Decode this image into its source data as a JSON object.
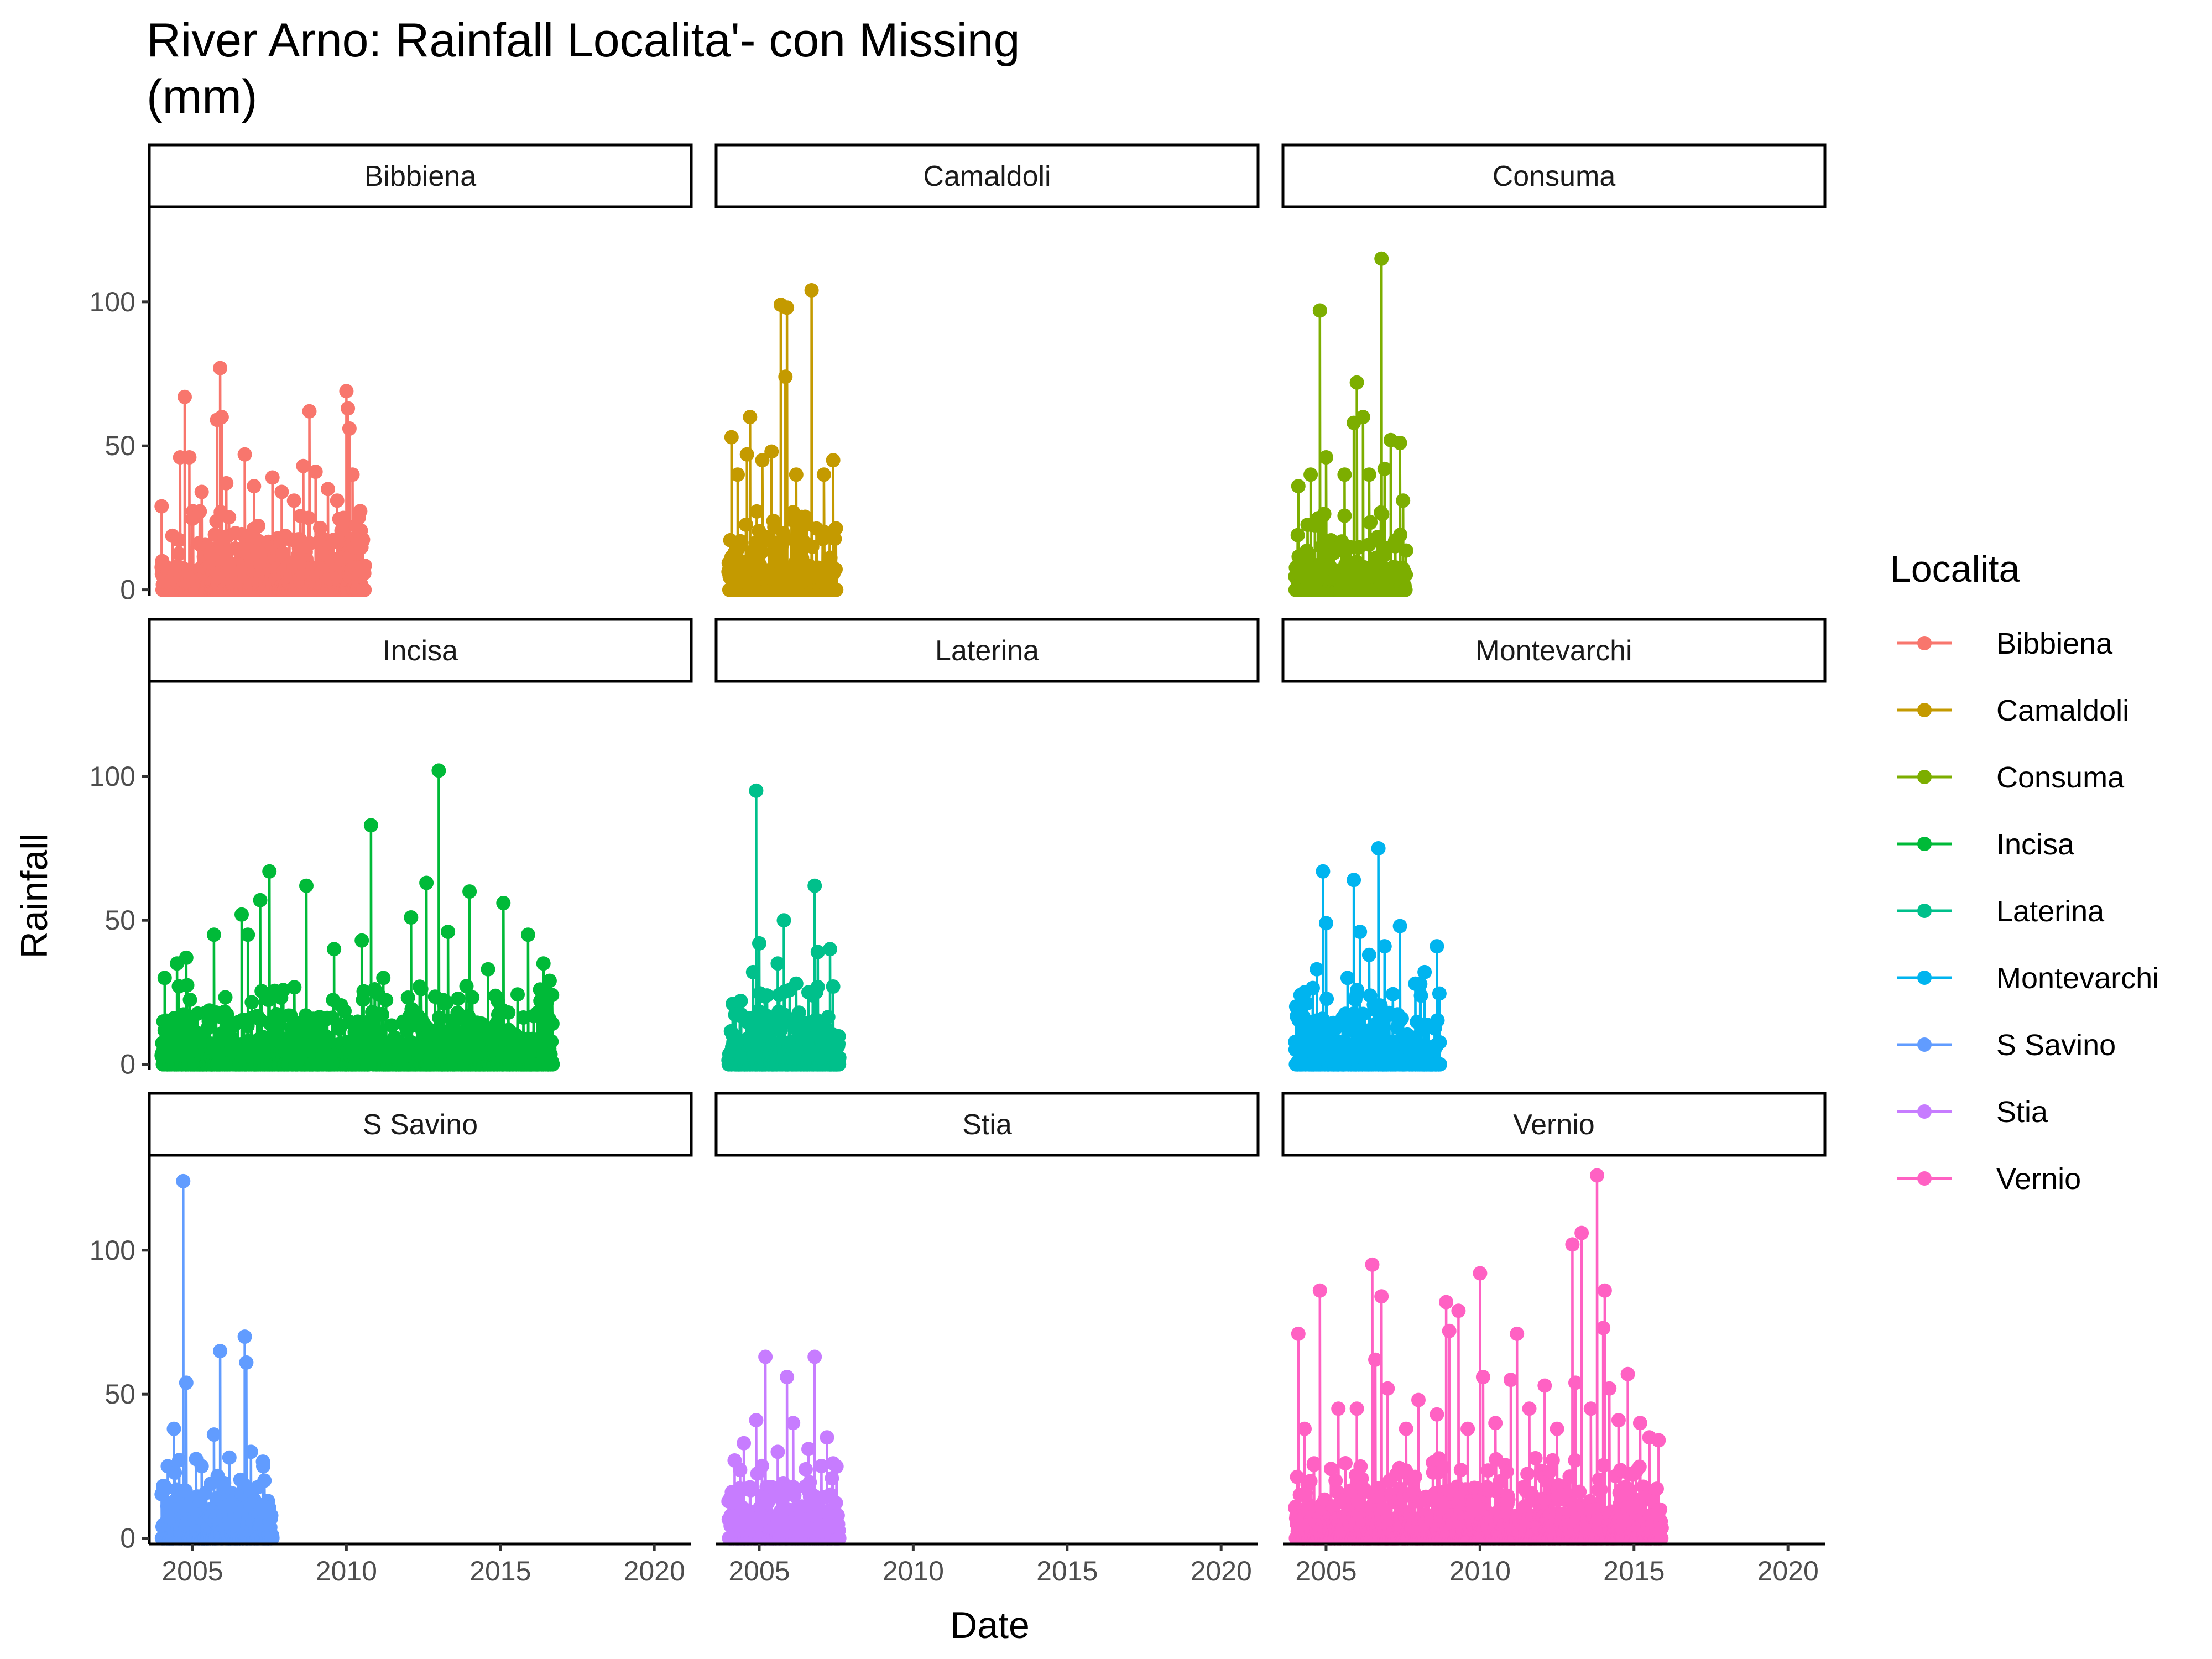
{
  "chart_data": {
    "type": "line",
    "title": "River Arno: Rainfall Localita'- con Missing\n(mm)",
    "xlabel": "Date",
    "ylabel": "Rainfall",
    "xlim": [
      2003.6,
      2021.2
    ],
    "ylim": [
      -2,
      133
    ],
    "x_ticks": [
      "2005",
      "2010",
      "2015",
      "2020"
    ],
    "y_ticks": [
      "0",
      "50",
      "100"
    ],
    "facet_layout": "3x3, shared axes",
    "legend": {
      "title": "Localita",
      "position": "right"
    },
    "series": [
      {
        "name": "Bibbiena",
        "color": "#F8766D",
        "start": 2004.0,
        "end": 2010.6,
        "peaks": [
          [
            2004.0,
            29
          ],
          [
            2004.6,
            46
          ],
          [
            2004.75,
            67
          ],
          [
            2004.9,
            46
          ],
          [
            2005.3,
            34
          ],
          [
            2005.8,
            59
          ],
          [
            2005.9,
            77
          ],
          [
            2005.95,
            60
          ],
          [
            2006.1,
            37
          ],
          [
            2006.7,
            47
          ],
          [
            2007.0,
            36
          ],
          [
            2007.6,
            39
          ],
          [
            2007.9,
            34
          ],
          [
            2008.3,
            31
          ],
          [
            2008.6,
            43
          ],
          [
            2008.8,
            62
          ],
          [
            2009.0,
            41
          ],
          [
            2009.4,
            35
          ],
          [
            2009.7,
            31
          ],
          [
            2010.0,
            69
          ],
          [
            2010.05,
            63
          ],
          [
            2010.1,
            56
          ],
          [
            2010.2,
            40
          ],
          [
            2010.4,
            25
          ]
        ]
      },
      {
        "name": "Camaldoli",
        "color": "#C49A00",
        "start": 2004.0,
        "end": 2007.5,
        "peaks": [
          [
            2004.1,
            53
          ],
          [
            2004.3,
            40
          ],
          [
            2004.6,
            47
          ],
          [
            2004.7,
            60
          ],
          [
            2005.1,
            45
          ],
          [
            2005.4,
            48
          ],
          [
            2005.7,
            99
          ],
          [
            2005.85,
            74
          ],
          [
            2005.9,
            98
          ],
          [
            2006.2,
            40
          ],
          [
            2006.7,
            104
          ],
          [
            2007.1,
            40
          ],
          [
            2007.4,
            45
          ]
        ]
      },
      {
        "name": "Consuma",
        "color": "#7CAE00",
        "start": 2004.0,
        "end": 2007.6,
        "peaks": [
          [
            2004.1,
            36
          ],
          [
            2004.5,
            40
          ],
          [
            2004.8,
            97
          ],
          [
            2005.0,
            46
          ],
          [
            2005.6,
            40
          ],
          [
            2005.9,
            58
          ],
          [
            2006.0,
            72
          ],
          [
            2006.2,
            60
          ],
          [
            2006.4,
            40
          ],
          [
            2006.8,
            115
          ],
          [
            2006.9,
            42
          ],
          [
            2007.1,
            52
          ],
          [
            2007.4,
            51
          ],
          [
            2007.5,
            31
          ]
        ]
      },
      {
        "name": "Incisa",
        "color": "#00BA38",
        "start": 2004.0,
        "end": 2016.7,
        "peaks": [
          [
            2004.1,
            30
          ],
          [
            2004.5,
            35
          ],
          [
            2004.8,
            37
          ],
          [
            2005.7,
            45
          ],
          [
            2006.6,
            52
          ],
          [
            2006.8,
            45
          ],
          [
            2007.2,
            57
          ],
          [
            2007.5,
            67
          ],
          [
            2008.7,
            62
          ],
          [
            2009.6,
            40
          ],
          [
            2010.5,
            43
          ],
          [
            2010.8,
            83
          ],
          [
            2011.2,
            30
          ],
          [
            2012.1,
            51
          ],
          [
            2012.6,
            63
          ],
          [
            2013.0,
            102
          ],
          [
            2013.3,
            46
          ],
          [
            2014.0,
            60
          ],
          [
            2014.6,
            33
          ],
          [
            2015.1,
            56
          ],
          [
            2015.9,
            45
          ],
          [
            2016.4,
            35
          ],
          [
            2016.6,
            29
          ]
        ]
      },
      {
        "name": "Laterina",
        "color": "#00C08B",
        "start": 2004.0,
        "end": 2007.6,
        "peaks": [
          [
            2004.4,
            22
          ],
          [
            2004.8,
            32
          ],
          [
            2004.9,
            95
          ],
          [
            2005.0,
            42
          ],
          [
            2005.6,
            35
          ],
          [
            2005.8,
            50
          ],
          [
            2006.2,
            28
          ],
          [
            2006.6,
            25
          ],
          [
            2006.8,
            62
          ],
          [
            2006.9,
            39
          ],
          [
            2007.3,
            40
          ],
          [
            2007.4,
            27
          ]
        ]
      },
      {
        "name": "Montevarchi",
        "color": "#00B4EF",
        "start": 2004.0,
        "end": 2008.7,
        "peaks": [
          [
            2004.3,
            25
          ],
          [
            2004.7,
            33
          ],
          [
            2004.9,
            67
          ],
          [
            2005.0,
            49
          ],
          [
            2005.7,
            30
          ],
          [
            2005.9,
            64
          ],
          [
            2006.1,
            46
          ],
          [
            2006.4,
            38
          ],
          [
            2006.7,
            75
          ],
          [
            2006.9,
            41
          ],
          [
            2007.4,
            48
          ],
          [
            2007.9,
            28
          ],
          [
            2008.2,
            32
          ],
          [
            2008.6,
            41
          ]
        ]
      },
      {
        "name": "S Savino",
        "color": "#619CFF",
        "start": 2004.0,
        "end": 2007.6,
        "peaks": [
          [
            2004.2,
            25
          ],
          [
            2004.4,
            38
          ],
          [
            2004.7,
            124
          ],
          [
            2004.8,
            54
          ],
          [
            2005.3,
            25
          ],
          [
            2005.7,
            36
          ],
          [
            2005.9,
            65
          ],
          [
            2006.2,
            28
          ],
          [
            2006.7,
            70
          ],
          [
            2006.75,
            61
          ],
          [
            2006.9,
            30
          ],
          [
            2007.3,
            25
          ]
        ]
      },
      {
        "name": "Stia",
        "color": "#C77CFF",
        "start": 2004.0,
        "end": 2007.6,
        "peaks": [
          [
            2004.2,
            27
          ],
          [
            2004.5,
            33
          ],
          [
            2004.9,
            41
          ],
          [
            2005.2,
            63
          ],
          [
            2005.6,
            30
          ],
          [
            2005.9,
            56
          ],
          [
            2006.1,
            40
          ],
          [
            2006.6,
            31
          ],
          [
            2006.8,
            63
          ],
          [
            2007.2,
            35
          ],
          [
            2007.4,
            26
          ]
        ]
      },
      {
        "name": "Vernio",
        "color": "#FF61C3",
        "start": 2004.0,
        "end": 2015.9,
        "peaks": [
          [
            2004.1,
            71
          ],
          [
            2004.3,
            38
          ],
          [
            2004.8,
            86
          ],
          [
            2005.4,
            45
          ],
          [
            2006.0,
            45
          ],
          [
            2006.5,
            95
          ],
          [
            2006.6,
            62
          ],
          [
            2006.8,
            84
          ],
          [
            2007.0,
            52
          ],
          [
            2007.6,
            38
          ],
          [
            2008.0,
            48
          ],
          [
            2008.6,
            43
          ],
          [
            2008.9,
            82
          ],
          [
            2009.0,
            72
          ],
          [
            2009.3,
            79
          ],
          [
            2009.6,
            38
          ],
          [
            2010.0,
            92
          ],
          [
            2010.1,
            56
          ],
          [
            2010.5,
            40
          ],
          [
            2011.0,
            55
          ],
          [
            2011.2,
            71
          ],
          [
            2011.6,
            45
          ],
          [
            2012.1,
            53
          ],
          [
            2012.5,
            38
          ],
          [
            2013.0,
            102
          ],
          [
            2013.1,
            54
          ],
          [
            2013.3,
            106
          ],
          [
            2013.6,
            45
          ],
          [
            2013.8,
            126
          ],
          [
            2014.0,
            73
          ],
          [
            2014.05,
            86
          ],
          [
            2014.2,
            52
          ],
          [
            2014.5,
            41
          ],
          [
            2014.8,
            57
          ],
          [
            2015.2,
            40
          ],
          [
            2015.5,
            35
          ],
          [
            2015.8,
            34
          ]
        ]
      }
    ]
  }
}
